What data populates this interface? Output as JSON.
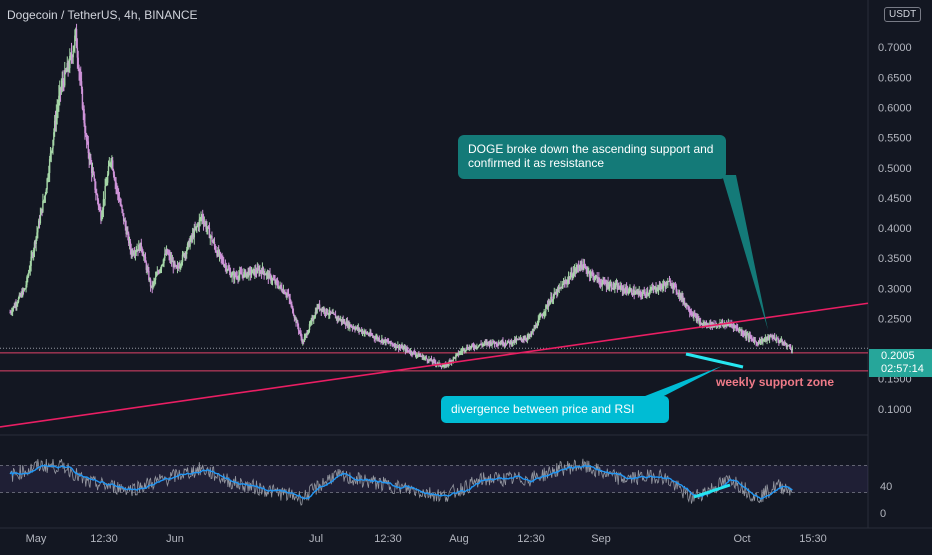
{
  "header": {
    "symbol_title": "Dogecoin / TetherUS, 4h, BINANCE",
    "currency_label": "USDT"
  },
  "price_panel": {
    "current_price": "0.2005",
    "countdown": "02:57:14",
    "y_ticks": [
      "0.7000",
      "0.6500",
      "0.6000",
      "0.5500",
      "0.5000",
      "0.4500",
      "0.4000",
      "0.3500",
      "0.3000",
      "0.2500",
      "0.1500",
      "0.1000"
    ]
  },
  "rsi_panel": {
    "y_ticks": [
      "40",
      "0"
    ]
  },
  "x_axis": {
    "labels": [
      "May",
      "12:30",
      "Jun",
      "Jul",
      "12:30",
      "Aug",
      "12:30",
      "Sep",
      "Oct",
      "15:30"
    ]
  },
  "annotations": {
    "resistance_callout": "DOGE broke down the ascending support and confirmed it as resistance",
    "divergence_callout": "divergence between price and RSI",
    "support_zone_label": "weekly support zone"
  },
  "colors": {
    "background": "#131722",
    "bull_candle": "#a5d6a7",
    "bear_candle": "#ce93d8",
    "trendline": "#e91e63",
    "support_lines": "#e04368",
    "callout_dark_teal": "#147a78",
    "callout_cyan": "#00bcd4",
    "rsi_line": "#9598a1",
    "rsi_ma": "#2196f3",
    "price_tag": "#26a69a",
    "divergence_lines": "#26e6f0"
  },
  "chart_data": {
    "type": "candlestick",
    "title": "Dogecoin / TetherUS, 4h, BINANCE",
    "y_unit": "USDT",
    "ylim": [
      0.06,
      0.77
    ],
    "price_path": [
      [
        "2021-04-25",
        0.26
      ],
      [
        "2021-04-28",
        0.3
      ],
      [
        "2021-04-30",
        0.38
      ],
      [
        "2021-05-02",
        0.46
      ],
      [
        "2021-05-04",
        0.58
      ],
      [
        "2021-05-05",
        0.63
      ],
      [
        "2021-05-07",
        0.68
      ],
      [
        "2021-05-08",
        0.72
      ],
      [
        "2021-05-10",
        0.55
      ],
      [
        "2021-05-12",
        0.46
      ],
      [
        "2021-05-13",
        0.42
      ],
      [
        "2021-05-15",
        0.52
      ],
      [
        "2021-05-16",
        0.47
      ],
      [
        "2021-05-19",
        0.36
      ],
      [
        "2021-05-21",
        0.37
      ],
      [
        "2021-05-23",
        0.3
      ],
      [
        "2021-05-26",
        0.36
      ],
      [
        "2021-05-28",
        0.33
      ],
      [
        "2021-06-02",
        0.42
      ],
      [
        "2021-06-05",
        0.36
      ],
      [
        "2021-06-08",
        0.32
      ],
      [
        "2021-06-14",
        0.33
      ],
      [
        "2021-06-19",
        0.29
      ],
      [
        "2021-06-22",
        0.21
      ],
      [
        "2021-06-25",
        0.27
      ],
      [
        "2021-07-01",
        0.24
      ],
      [
        "2021-07-06",
        0.22
      ],
      [
        "2021-07-12",
        0.2
      ],
      [
        "2021-07-20",
        0.17
      ],
      [
        "2021-07-24",
        0.2
      ],
      [
        "2021-07-29",
        0.21
      ],
      [
        "2021-08-02",
        0.21
      ],
      [
        "2021-08-06",
        0.22
      ],
      [
        "2021-08-10",
        0.28
      ],
      [
        "2021-08-14",
        0.32
      ],
      [
        "2021-08-16",
        0.34
      ],
      [
        "2021-08-20",
        0.31
      ],
      [
        "2021-08-24",
        0.3
      ],
      [
        "2021-08-28",
        0.29
      ],
      [
        "2021-09-03",
        0.31
      ],
      [
        "2021-09-07",
        0.26
      ],
      [
        "2021-09-09",
        0.24
      ],
      [
        "2021-09-15",
        0.24
      ],
      [
        "2021-09-20",
        0.21
      ],
      [
        "2021-09-23",
        0.22
      ],
      [
        "2021-09-27",
        0.2
      ]
    ],
    "rsi": {
      "ylim": [
        0,
        100
      ],
      "band": [
        30,
        70
      ],
      "path": [
        [
          "2021-04-25",
          55
        ],
        [
          "2021-05-01",
          70
        ],
        [
          "2021-05-06",
          68
        ],
        [
          "2021-05-10",
          45
        ],
        [
          "2021-05-19",
          35
        ],
        [
          "2021-05-28",
          55
        ],
        [
          "2021-06-02",
          65
        ],
        [
          "2021-06-08",
          45
        ],
        [
          "2021-06-22",
          22
        ],
        [
          "2021-06-28",
          55
        ],
        [
          "2021-07-06",
          45
        ],
        [
          "2021-07-20",
          25
        ],
        [
          "2021-07-28",
          50
        ],
        [
          "2021-08-06",
          50
        ],
        [
          "2021-08-12",
          65
        ],
        [
          "2021-08-16",
          70
        ],
        [
          "2021-08-24",
          50
        ],
        [
          "2021-09-01",
          55
        ],
        [
          "2021-09-07",
          22
        ],
        [
          "2021-09-15",
          50
        ],
        [
          "2021-09-20",
          22
        ],
        [
          "2021-09-24",
          40
        ],
        [
          "2021-09-27",
          35
        ]
      ]
    },
    "drawings": {
      "ascending_trendline": [
        [
          "2021-04-23",
          0.07
        ],
        [
          "2021-10-05",
          0.262
        ]
      ],
      "weekly_support_zone": [
        0.163,
        0.193
      ],
      "price_divergence_line": [
        [
          "2021-09-21",
          0.208
        ],
        [
          "2021-09-27",
          0.195
        ]
      ],
      "rsi_divergence_line": [
        [
          "2021-09-21",
          19
        ],
        [
          "2021-09-27",
          32
        ]
      ]
    }
  }
}
